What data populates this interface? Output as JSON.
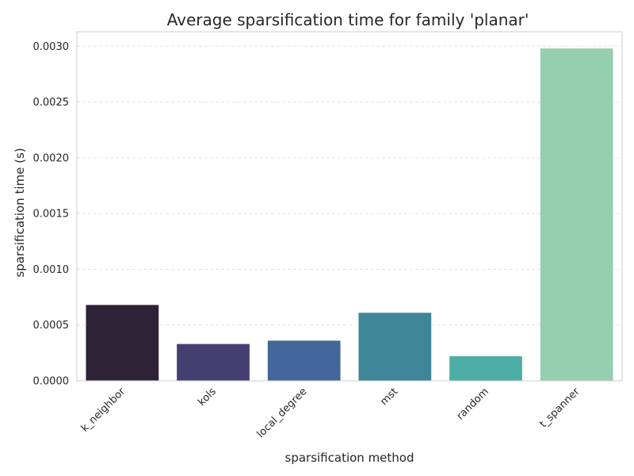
{
  "chart_data": {
    "type": "bar",
    "title": "Average sparsification time for family 'planar'",
    "xlabel": "sparsification method",
    "ylabel": "sparsification time (s)",
    "categories": [
      "k_neighbor",
      "kols",
      "local_degree",
      "mst",
      "random",
      "t_spanner"
    ],
    "values": [
      0.00068,
      0.00033,
      0.00036,
      0.00061,
      0.00022,
      0.00298
    ],
    "colors": [
      "#2e2236",
      "#463f72",
      "#43679a",
      "#3f8698",
      "#4dada4",
      "#94cfb0"
    ],
    "yticks": [
      "0.0000",
      "0.0005",
      "0.0010",
      "0.0015",
      "0.0020",
      "0.0025",
      "0.0030"
    ],
    "ylim": [
      0,
      0.00313
    ],
    "grid": true,
    "legend": "none"
  }
}
